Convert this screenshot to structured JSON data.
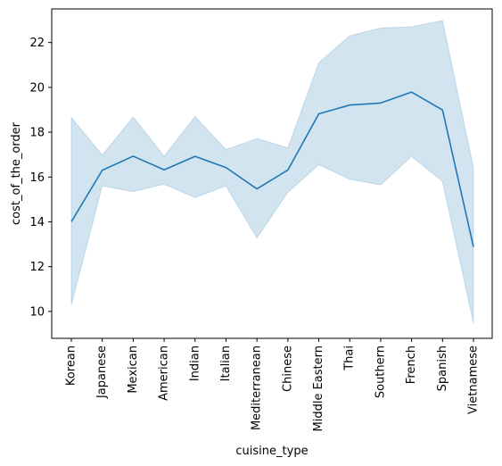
{
  "chart_data": {
    "type": "line",
    "title": "",
    "xlabel": "cuisine_type",
    "ylabel": "cost_of_the_order",
    "categories": [
      "Korean",
      "Japanese",
      "Mexican",
      "American",
      "Indian",
      "Italian",
      "Mediterranean",
      "Chinese",
      "Middle Eastern",
      "Thai",
      "Southern",
      "French",
      "Spanish",
      "Vietnamese"
    ],
    "yticks": [
      10,
      12,
      14,
      16,
      18,
      20,
      22
    ],
    "ylim": [
      8.8,
      23.5
    ],
    "grid": false,
    "series": [
      {
        "values": [
          14.0,
          16.3,
          16.93,
          16.32,
          16.92,
          16.42,
          15.47,
          16.31,
          18.82,
          19.21,
          19.3,
          19.79,
          18.99,
          12.88
        ],
        "ci_lower": [
          10.3,
          15.6,
          15.35,
          15.68,
          15.08,
          15.6,
          13.28,
          15.32,
          16.55,
          15.9,
          15.65,
          16.92,
          15.8,
          9.48
        ],
        "ci_upper": [
          18.65,
          16.98,
          18.68,
          16.92,
          18.7,
          17.22,
          17.72,
          17.3,
          21.1,
          22.3,
          22.65,
          22.7,
          22.98,
          16.4
        ],
        "color": "#1f77b4",
        "band_color": "#1f77b4"
      }
    ]
  }
}
